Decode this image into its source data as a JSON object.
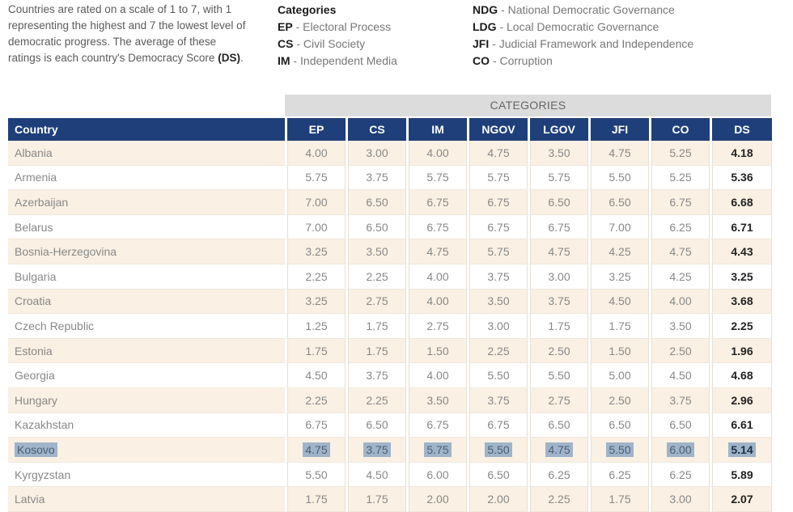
{
  "intro": {
    "text": "Countries are rated on a scale of 1 to 7, with 1 representing the highest and 7 the lowest level of democratic progress. The average of these ratings is each country's Democracy Score",
    "emph": "(DS)",
    "end": "."
  },
  "legend": {
    "heading": "Categories",
    "left": [
      {
        "abbr": "EP",
        "label": "Electoral Process"
      },
      {
        "abbr": "CS",
        "label": "Civil Society"
      },
      {
        "abbr": "IM",
        "label": "Independent Media"
      }
    ],
    "right": [
      {
        "abbr": "NDG",
        "label": "National Democratic Governance"
      },
      {
        "abbr": "LDG",
        "label": "Local Democratic Governance"
      },
      {
        "abbr": "JFI",
        "label": "Judicial Framework and Independence"
      },
      {
        "abbr": "CO",
        "label": "Corruption"
      }
    ]
  },
  "table": {
    "band_label": "CATEGORIES",
    "columns": [
      "Country",
      "EP",
      "CS",
      "IM",
      "NGOV",
      "LGOV",
      "JFI",
      "CO",
      "DS"
    ],
    "rows": [
      [
        "Albania",
        "4.00",
        "3.00",
        "4.00",
        "4.75",
        "3.50",
        "4.75",
        "5.25",
        "4.18"
      ],
      [
        "Armenia",
        "5.75",
        "3.75",
        "5.75",
        "5.75",
        "5.75",
        "5.50",
        "5.25",
        "5.36"
      ],
      [
        "Azerbaijan",
        "7.00",
        "6.50",
        "6.75",
        "6.75",
        "6.50",
        "6.50",
        "6.75",
        "6.68"
      ],
      [
        "Belarus",
        "7.00",
        "6.50",
        "6.75",
        "6.75",
        "6.75",
        "7.00",
        "6.25",
        "6.71"
      ],
      [
        "Bosnia-Herzegovina",
        "3.25",
        "3.50",
        "4.75",
        "5.75",
        "4.75",
        "4.25",
        "4.75",
        "4.43"
      ],
      [
        "Bulgaria",
        "2.25",
        "2.25",
        "4.00",
        "3.75",
        "3.00",
        "3.25",
        "4.25",
        "3.25"
      ],
      [
        "Croatia",
        "3.25",
        "2.75",
        "4.00",
        "3.50",
        "3.75",
        "4.50",
        "4.00",
        "3.68"
      ],
      [
        "Czech Republic",
        "1.25",
        "1.75",
        "2.75",
        "3.00",
        "1.75",
        "1.75",
        "3.50",
        "2.25"
      ],
      [
        "Estonia",
        "1.75",
        "1.75",
        "1.50",
        "2.25",
        "2.50",
        "1.50",
        "2.50",
        "1.96"
      ],
      [
        "Georgia",
        "4.50",
        "3.75",
        "4.00",
        "5.50",
        "5.50",
        "5.00",
        "4.50",
        "4.68"
      ],
      [
        "Hungary",
        "2.25",
        "2.25",
        "3.50",
        "3.75",
        "2.75",
        "2.50",
        "3.75",
        "2.96"
      ],
      [
        "Kazakhstan",
        "6.75",
        "6.50",
        "6.75",
        "6.75",
        "6.50",
        "6.50",
        "6.50",
        "6.61"
      ],
      [
        "Kosovo",
        "4.75",
        "3.75",
        "5.75",
        "5.50",
        "4.75",
        "5.50",
        "6.00",
        "5.14"
      ],
      [
        "Kyrgyzstan",
        "5.50",
        "4.50",
        "6.00",
        "6.50",
        "6.25",
        "6.25",
        "6.25",
        "5.89"
      ],
      [
        "Latvia",
        "1.75",
        "1.75",
        "2.00",
        "2.00",
        "2.25",
        "1.75",
        "3.00",
        "2.07"
      ]
    ],
    "highlight_country": "Kosovo"
  },
  "colors": {
    "header_bg": "#1f3f7a",
    "band_bg": "#dcdcdc",
    "odd_row_bg": "#faf0e3",
    "highlight_bg": "#9fb4c9"
  }
}
